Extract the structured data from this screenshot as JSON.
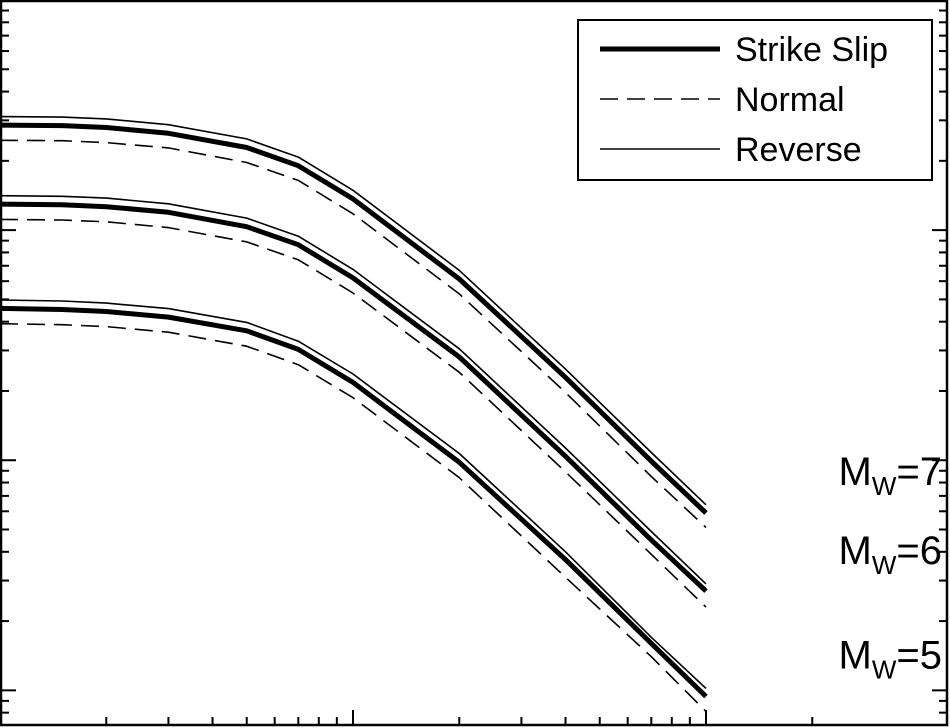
{
  "chart_data": {
    "type": "line",
    "title": "",
    "xlabel": "",
    "ylabel": "",
    "xscale": "log",
    "yscale": "log",
    "grid": false,
    "legend_position": "top-right",
    "legend": [
      {
        "label": "Strike Slip",
        "style": "thick-solid"
      },
      {
        "label": "Normal",
        "style": "dashed"
      },
      {
        "label": "Reverse",
        "style": "thin-solid"
      }
    ],
    "x": [
      1,
      1.5,
      2,
      3,
      5,
      7,
      10,
      20,
      40,
      70,
      100
    ],
    "groups": [
      {
        "label": "M",
        "sub": "W",
        "suffix": "=7",
        "series": [
          {
            "name": "Strike Slip",
            "values": [
              0.286,
              0.2845,
              0.2792,
              0.2636,
              0.2286,
              0.1906,
              0.1367,
              0.0613,
              0.0229,
              0.0099,
              0.0059
            ]
          },
          {
            "name": "Normal",
            "values": [
              0.2456,
              0.2446,
              0.2401,
              0.2277,
              0.1968,
              0.1644,
              0.1177,
              0.0528,
              0.0197,
              0.0085,
              0.0051
            ]
          },
          {
            "name": "Reverse",
            "values": [
              0.3115,
              0.3099,
              0.3042,
              0.2871,
              0.249,
              0.2077,
              0.1489,
              0.0668,
              0.0249,
              0.0108,
              0.0064
            ]
          }
        ]
      },
      {
        "label": "M",
        "sub": "W",
        "suffix": "=6",
        "series": [
          {
            "name": "Strike Slip",
            "values": [
              0.1297,
              0.1288,
              0.1264,
              0.1195,
              0.1035,
              0.0864,
              0.062,
              0.0281,
              0.0104,
              0.0045,
              0.0027
            ]
          },
          {
            "name": "Normal",
            "values": [
              0.1113,
              0.1107,
              0.1087,
              0.1026,
              0.0889,
              0.0743,
              0.0533,
              0.0241,
              0.0089,
              0.0039,
              0.0023
            ]
          },
          {
            "name": "Reverse",
            "values": [
              0.1411,
              0.1403,
              0.1378,
              0.1301,
              0.1128,
              0.0941,
              0.0675,
              0.0305,
              0.0113,
              0.0049,
              0.0029
            ]
          }
        ]
      },
      {
        "label": "M",
        "sub": "W",
        "suffix": "=5",
        "series": [
          {
            "name": "Strike Slip",
            "values": [
              0.0457,
              0.0452,
              0.0443,
              0.0419,
              0.0365,
              0.0303,
              0.0218,
              0.0098,
              0.0037,
              0.0016,
              0.00094
            ]
          },
          {
            "name": "Normal",
            "values": [
              0.0392,
              0.0388,
              0.0381,
              0.036,
              0.0313,
              0.026,
              0.0187,
              0.0084,
              0.0031,
              0.0014,
              0.00081
            ]
          },
          {
            "name": "Reverse",
            "values": [
              0.0497,
              0.0492,
              0.0482,
              0.0456,
              0.0397,
              0.0329,
              0.0237,
              0.0107,
              0.004,
              0.0017,
              0.00102
            ]
          }
        ]
      }
    ],
    "xlim": [
      1,
      100
    ],
    "ylim": [
      0.0007,
      1.0
    ]
  }
}
